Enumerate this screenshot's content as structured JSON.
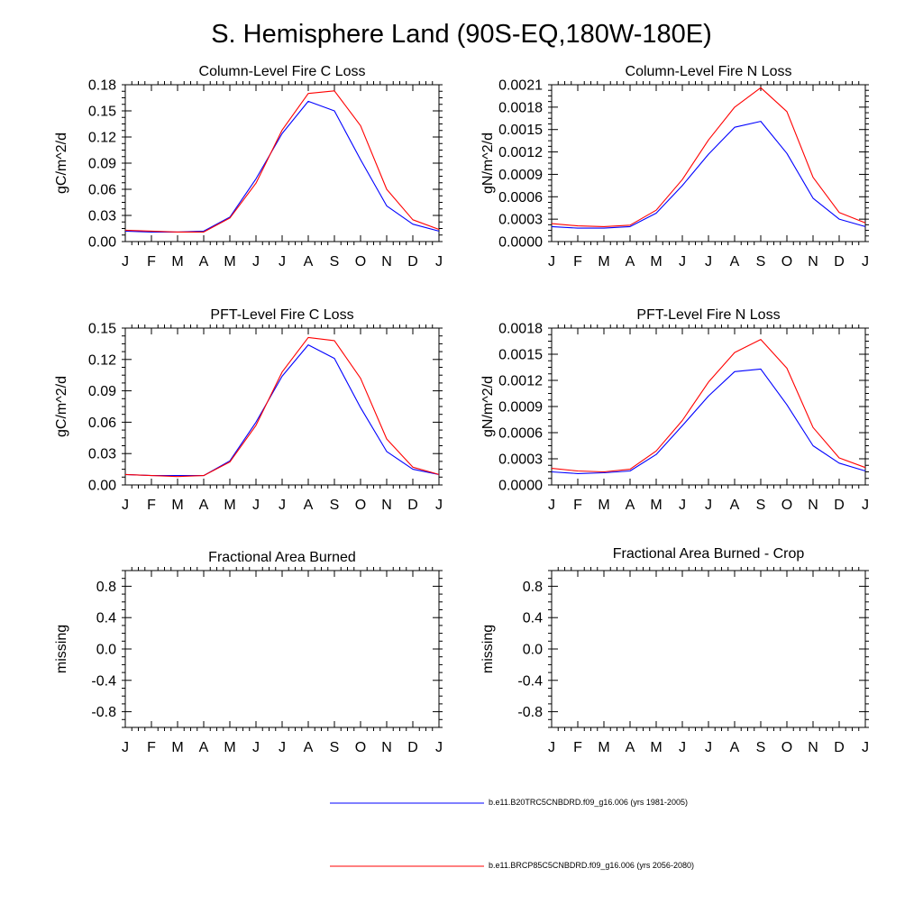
{
  "title": "S. Hemisphere Land (90S-EQ,180W-180E)",
  "colors": {
    "series1": "#0000ff",
    "series2": "#ff0000",
    "frame": "#000000"
  },
  "legend": [
    {
      "label": "b.e11.B20TRC5CNBDRD.f09_g16.006 (yrs 1981-2005)",
      "color": "#0000ff"
    },
    {
      "label": "b.e11.BRCP85C5CNBDRD.f09_g16.006 (yrs 2056-2080)",
      "color": "#ff0000"
    }
  ],
  "chart_data": [
    {
      "type": "line",
      "title": "Column-Level Fire C Loss",
      "ylabel": "gC/m^2/d",
      "xlabel": "",
      "categories": [
        "J",
        "F",
        "M",
        "A",
        "M",
        "J",
        "J",
        "A",
        "S",
        "O",
        "N",
        "D",
        "J"
      ],
      "ylim": [
        0,
        0.18
      ],
      "yticks": [
        "0.00",
        "0.03",
        "0.06",
        "0.09",
        "0.12",
        "0.15",
        "0.18"
      ],
      "series": [
        {
          "name": "b.e11.B20TRC5CNBDRD.f09_g16.006 (yrs 1981-2005)",
          "values": [
            0.012,
            0.011,
            0.011,
            0.012,
            0.028,
            0.072,
            0.124,
            0.161,
            0.15,
            0.094,
            0.041,
            0.02,
            0.012
          ]
        },
        {
          "name": "b.e11.BRCP85C5CNBDRD.f09_g16.006 (yrs 2056-2080)",
          "values": [
            0.013,
            0.012,
            0.011,
            0.011,
            0.027,
            0.067,
            0.128,
            0.17,
            0.173,
            0.133,
            0.06,
            0.025,
            0.014
          ]
        }
      ]
    },
    {
      "type": "line",
      "title": "Column-Level Fire N Loss",
      "ylabel": "gN/m^2/d",
      "xlabel": "",
      "categories": [
        "J",
        "F",
        "M",
        "A",
        "M",
        "J",
        "J",
        "A",
        "S",
        "O",
        "N",
        "D",
        "J"
      ],
      "ylim": [
        0,
        0.0021
      ],
      "yticks": [
        "0.0000",
        "0.0003",
        "0.0006",
        "0.0009",
        "0.0012",
        "0.0015",
        "0.0018",
        "0.0021"
      ],
      "series": [
        {
          "name": "b.e11.B20TRC5CNBDRD.f09_g16.006 (yrs 1981-2005)",
          "values": [
            0.0002,
            0.00018,
            0.00018,
            0.0002,
            0.00038,
            0.00075,
            0.00117,
            0.00153,
            0.00161,
            0.00118,
            0.00058,
            0.0003,
            0.0002
          ]
        },
        {
          "name": "b.e11.BRCP85C5CNBDRD.f09_g16.006 (yrs 2056-2080)",
          "values": [
            0.00024,
            0.00021,
            0.0002,
            0.00022,
            0.00042,
            0.00083,
            0.00136,
            0.0018,
            0.00206,
            0.00174,
            0.00086,
            0.00039,
            0.00025
          ]
        }
      ]
    },
    {
      "type": "line",
      "title": "PFT-Level Fire C Loss",
      "ylabel": "gC/m^2/d",
      "xlabel": "",
      "categories": [
        "J",
        "F",
        "M",
        "A",
        "M",
        "J",
        "J",
        "A",
        "S",
        "O",
        "N",
        "D",
        "J"
      ],
      "ylim": [
        0,
        0.15
      ],
      "yticks": [
        "0.00",
        "0.03",
        "0.06",
        "0.09",
        "0.12",
        "0.15"
      ],
      "series": [
        {
          "name": "b.e11.B20TRC5CNBDRD.f09_g16.006 (yrs 1981-2005)",
          "values": [
            0.01,
            0.009,
            0.009,
            0.009,
            0.023,
            0.06,
            0.104,
            0.134,
            0.121,
            0.074,
            0.032,
            0.015,
            0.01
          ]
        },
        {
          "name": "b.e11.BRCP85C5CNBDRD.f09_g16.006 (yrs 2056-2080)",
          "values": [
            0.01,
            0.009,
            0.008,
            0.009,
            0.022,
            0.057,
            0.108,
            0.141,
            0.138,
            0.102,
            0.044,
            0.017,
            0.01
          ]
        }
      ]
    },
    {
      "type": "line",
      "title": "PFT-Level Fire N Loss",
      "ylabel": "gN/m^2/d",
      "xlabel": "",
      "categories": [
        "J",
        "F",
        "M",
        "A",
        "M",
        "J",
        "J",
        "A",
        "S",
        "O",
        "N",
        "D",
        "J"
      ],
      "ylim": [
        0,
        0.0018
      ],
      "yticks": [
        "0.0000",
        "0.0003",
        "0.0006",
        "0.0009",
        "0.0012",
        "0.0015",
        "0.0018"
      ],
      "series": [
        {
          "name": "b.e11.B20TRC5CNBDRD.f09_g16.006 (yrs 1981-2005)",
          "values": [
            0.00015,
            0.00013,
            0.00014,
            0.00016,
            0.00035,
            0.00068,
            0.00102,
            0.0013,
            0.00133,
            0.00092,
            0.00045,
            0.00025,
            0.00016
          ]
        },
        {
          "name": "b.e11.BRCP85C5CNBDRD.f09_g16.006 (yrs 2056-2080)",
          "values": [
            0.00019,
            0.00016,
            0.00015,
            0.00018,
            0.00039,
            0.00074,
            0.00118,
            0.00152,
            0.00167,
            0.00134,
            0.00066,
            0.00031,
            0.0002
          ]
        }
      ]
    },
    {
      "type": "line",
      "title": "Fractional Area Burned",
      "ylabel": "missing",
      "xlabel": "",
      "categories": [
        "J",
        "F",
        "M",
        "A",
        "M",
        "J",
        "J",
        "A",
        "S",
        "O",
        "N",
        "D",
        "J"
      ],
      "ylim": [
        -1.0,
        1.0
      ],
      "yticks": [
        "-0.8",
        "-0.4",
        "0.0",
        "0.4",
        "0.8"
      ],
      "series": []
    },
    {
      "type": "line",
      "title": "Fractional Area Burned - Crop",
      "ylabel": "missing",
      "xlabel": "",
      "categories": [
        "J",
        "F",
        "M",
        "A",
        "M",
        "J",
        "J",
        "A",
        "S",
        "O",
        "N",
        "D",
        "J"
      ],
      "ylim": [
        -1.0,
        1.0
      ],
      "yticks": [
        "-0.8",
        "-0.4",
        "0.0",
        "0.4",
        "0.8"
      ],
      "series": []
    }
  ]
}
